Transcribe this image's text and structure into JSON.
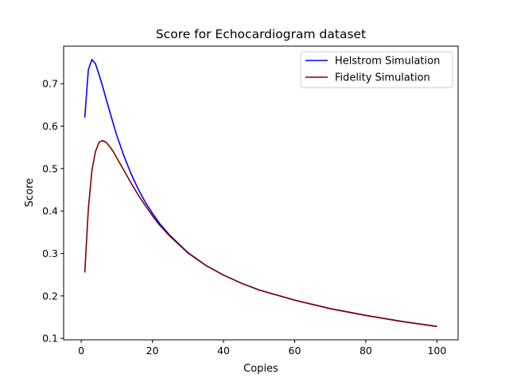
{
  "chart_data": {
    "type": "line",
    "title": "Score for Echocardiogram dataset",
    "xlabel": "Copies",
    "ylabel": "Score",
    "xlim": [
      -4.95,
      105.95
    ],
    "ylim": [
      0.0965,
      0.7885
    ],
    "xticks": [
      0,
      20,
      40,
      60,
      80,
      100
    ],
    "yticks": [
      0.1,
      0.2,
      0.3,
      0.4,
      0.5,
      0.6,
      0.7
    ],
    "grid": false,
    "legend_position": "top-right",
    "series": [
      {
        "name": "Helstrom Simulation",
        "color": "#0000ff",
        "x": [
          1,
          2,
          3,
          4,
          5,
          6,
          7,
          8,
          9,
          10,
          12,
          14,
          16,
          18,
          20,
          22,
          25,
          30,
          35,
          40,
          45,
          50,
          60,
          70,
          80,
          90,
          100
        ],
        "y": [
          0.62,
          0.733,
          0.757,
          0.747,
          0.722,
          0.694,
          0.664,
          0.635,
          0.606,
          0.578,
          0.53,
          0.488,
          0.452,
          0.421,
          0.395,
          0.371,
          0.342,
          0.302,
          0.272,
          0.249,
          0.23,
          0.214,
          0.19,
          0.17,
          0.154,
          0.14,
          0.128
        ]
      },
      {
        "name": "Fidelity Simulation",
        "color": "#800000",
        "x": [
          1,
          2,
          3,
          4,
          5,
          6,
          7,
          8,
          9,
          10,
          12,
          14,
          16,
          18,
          20,
          22,
          25,
          30,
          35,
          40,
          45,
          50,
          60,
          70,
          80,
          90,
          100
        ],
        "y": [
          0.255,
          0.405,
          0.495,
          0.54,
          0.562,
          0.566,
          0.562,
          0.552,
          0.54,
          0.525,
          0.496,
          0.466,
          0.438,
          0.413,
          0.389,
          0.367,
          0.34,
          0.301,
          0.272,
          0.249,
          0.23,
          0.214,
          0.19,
          0.17,
          0.154,
          0.14,
          0.128
        ]
      }
    ]
  }
}
